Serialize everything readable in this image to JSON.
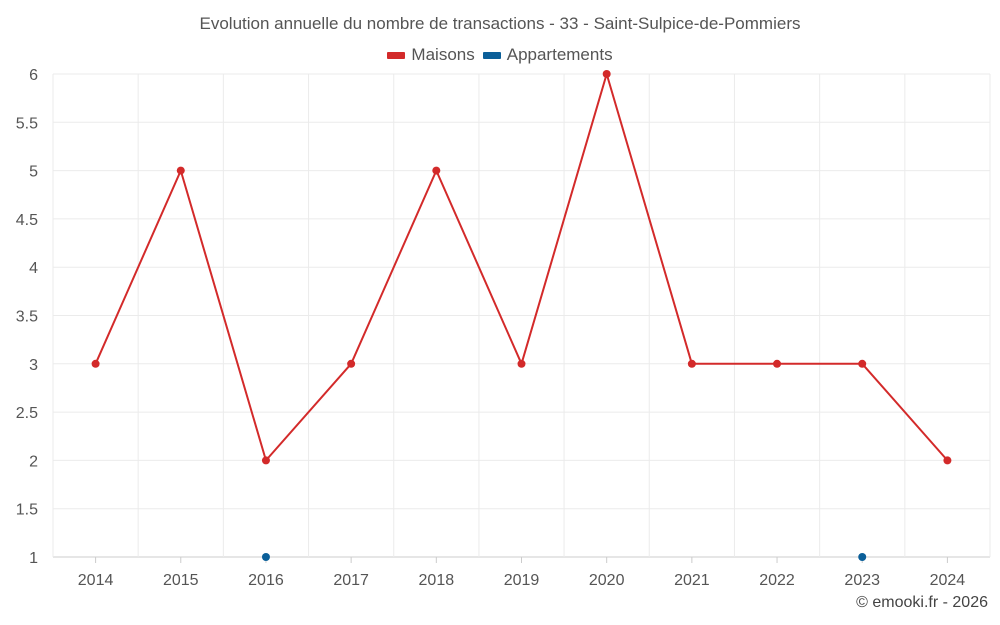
{
  "chart_data": {
    "type": "line",
    "title": "Evolution annuelle du nombre de transactions - 33 - Saint-Sulpice-de-Pommiers",
    "xlabel": "",
    "ylabel": "",
    "categories": [
      "2014",
      "2015",
      "2016",
      "2017",
      "2018",
      "2019",
      "2020",
      "2021",
      "2022",
      "2023",
      "2024"
    ],
    "ylim": [
      1,
      6
    ],
    "yticks": [
      "1",
      "1.5",
      "2",
      "2.5",
      "3",
      "3.5",
      "4",
      "4.5",
      "5",
      "5.5",
      "6"
    ],
    "grid": true,
    "legend_position": "top-center",
    "series": [
      {
        "name": "Maisons",
        "color": "#d32a2a",
        "line": true,
        "values": [
          3,
          5,
          2,
          3,
          5,
          3,
          6,
          3,
          3,
          3,
          2
        ]
      },
      {
        "name": "Appartements",
        "color": "#0b5f99",
        "line": false,
        "values": [
          null,
          null,
          1,
          null,
          null,
          null,
          null,
          null,
          null,
          1,
          null
        ]
      }
    ]
  },
  "credit": "© emooki.fr - 2026"
}
